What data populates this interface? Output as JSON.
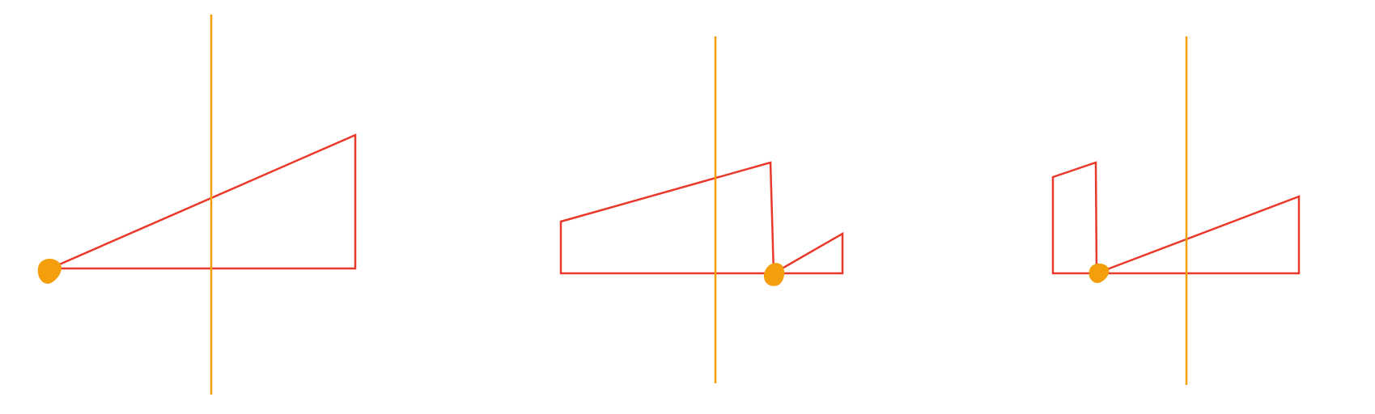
{
  "colors": {
    "background": "#ffffff",
    "shape_outline": "#e8392b",
    "axis_line": "#f59e0b",
    "pivot_dot": "#f59e0b"
  },
  "panels": [
    {
      "name": "panel-1",
      "shapes": [
        "triangle"
      ],
      "has_axis": true,
      "has_pivot": true
    },
    {
      "name": "panel-2",
      "shapes": [
        "quadrilateral",
        "triangle"
      ],
      "has_axis": true,
      "has_pivot": true
    },
    {
      "name": "panel-3",
      "shapes": [
        "quadrilateral",
        "triangle"
      ],
      "has_axis": true,
      "has_pivot": true
    }
  ]
}
